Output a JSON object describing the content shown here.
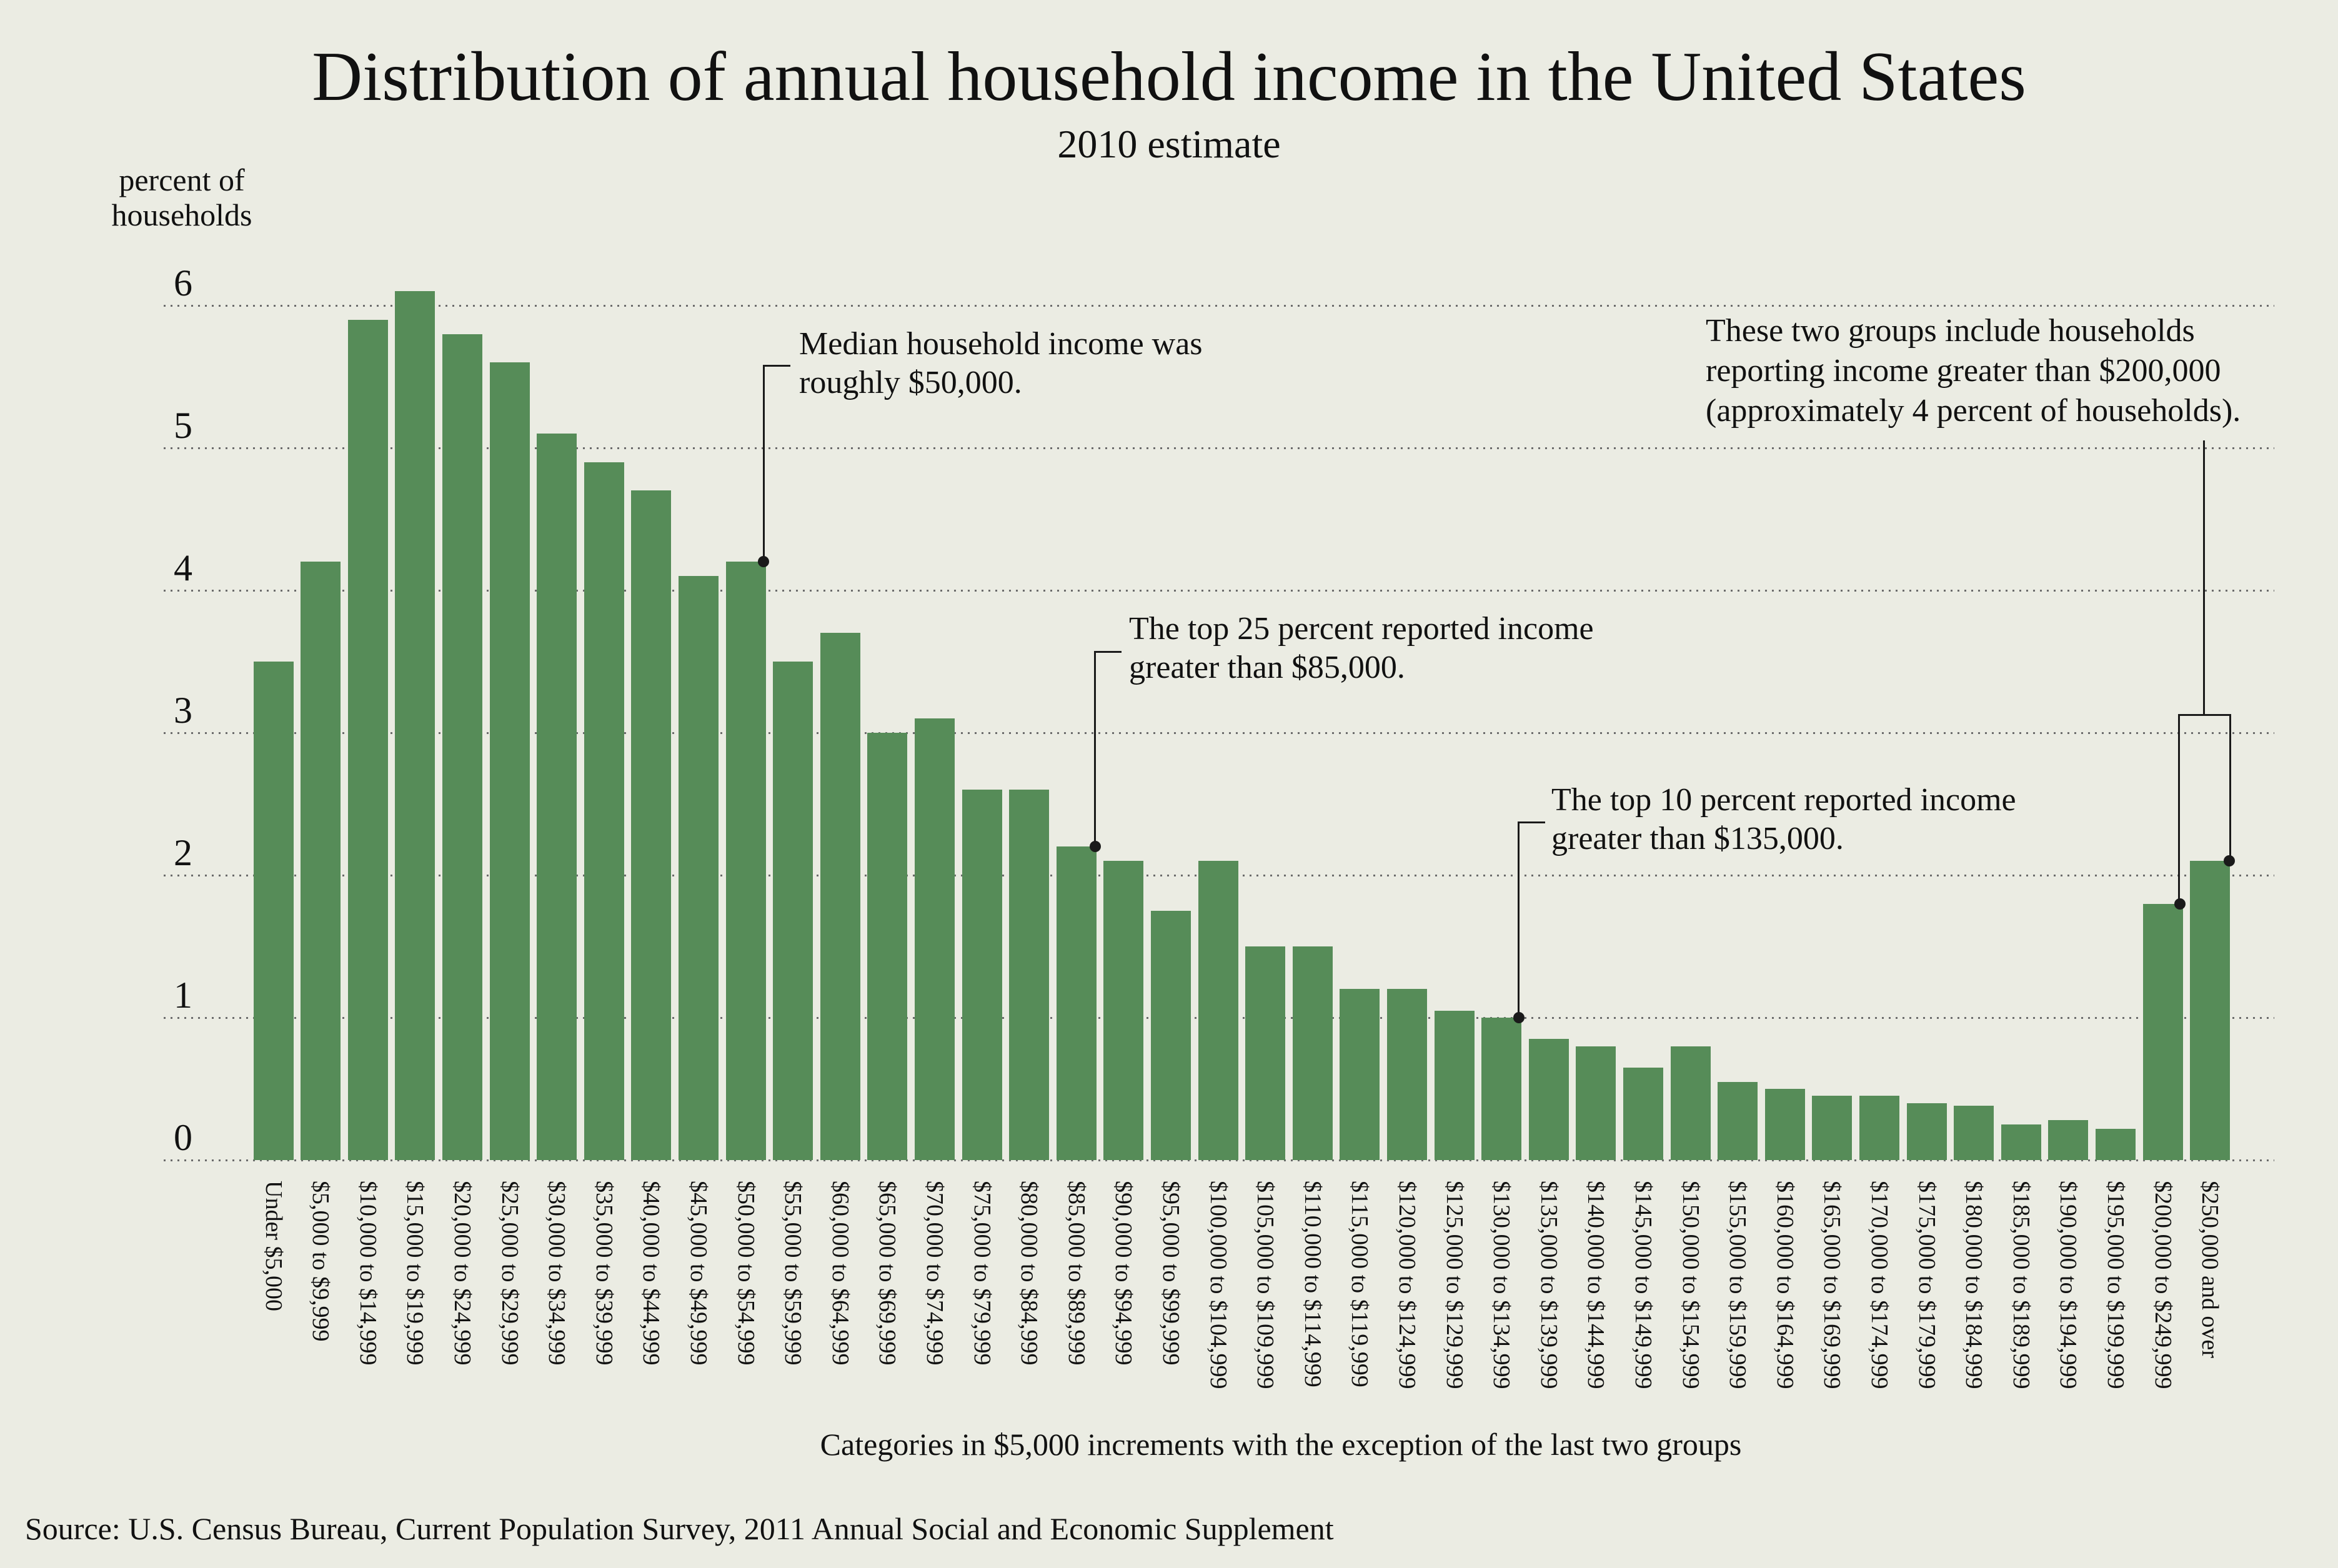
{
  "page": {
    "title": "Distribution of annual household income in the United States",
    "subtitle": "2010 estimate",
    "y_axis_title_line1": "percent of",
    "y_axis_title_line2": "households",
    "caption": "Categories in $5,000 increments with the exception of the last two groups",
    "source": "Source: U.S. Census Bureau, Current Population Survey, 2011 Annual Social and Economic Supplement"
  },
  "annotations": {
    "median": {
      "line1": "Median household income was",
      "line2": "roughly $50,000."
    },
    "top25": {
      "line1": "The top 25 percent reported income",
      "line2": "greater than $85,000."
    },
    "top10": {
      "line1": "The top 10 percent reported income",
      "line2": "greater than $135,000."
    },
    "high_income_groups": {
      "line1": "These two groups include households",
      "line2": "reporting income greater than $200,000",
      "line3": "(approximately 4 percent of households)."
    }
  },
  "colors": {
    "background": "#ebece3",
    "bar": "#568c58",
    "text": "#111111",
    "grid": "#6b6b6b",
    "connector": "#1a1a1a"
  },
  "chart_data": {
    "type": "bar",
    "title": "Distribution of annual household income in the United States",
    "subtitle": "2010 estimate",
    "ylabel": "percent of households",
    "xlabel": "Categories in $5,000 increments with the exception of the last two groups",
    "ylim": [
      0,
      6
    ],
    "yticks": [
      0,
      1,
      2,
      3,
      4,
      5,
      6
    ],
    "grid": "horizontal dotted, drawn behind bars",
    "legend_position": "none",
    "categories": [
      "Under $5,000",
      "$5,000 to $9,999",
      "$10,000 to $14,999",
      "$15,000 to $19,999",
      "$20,000 to $24,999",
      "$25,000 to $29,999",
      "$30,000 to $34,999",
      "$35,000 to $39,999",
      "$40,000 to $44,999",
      "$45,000 to $49,999",
      "$50,000 to $54,999",
      "$55,000 to $59,999",
      "$60,000 to $64,999",
      "$65,000 to $69,999",
      "$70,000 to $74,999",
      "$75,000 to $79,999",
      "$80,000 to $84,999",
      "$85,000 to $89,999",
      "$90,000 to $94,999",
      "$95,000 to $99,999",
      "$100,000 to $104,999",
      "$105,000 to $109,999",
      "$110,000 to $114,999",
      "$115,000 to $119,999",
      "$120,000 to $124,999",
      "$125,000 to $129,999",
      "$130,000 to $134,999",
      "$135,000 to $139,999",
      "$140,000 to $144,999",
      "$145,000 to $149,999",
      "$150,000 to $154,999",
      "$155,000 to $159,999",
      "$160,000 to $164,999",
      "$165,000 to $169,999",
      "$170,000 to $174,999",
      "$175,000 to $179,999",
      "$180,000 to $184,999",
      "$185,000 to $189,999",
      "$190,000 to $194,999",
      "$195,000 to $199,999",
      "$200,000 to $249,999",
      "$250,000 and over"
    ],
    "values": [
      3.5,
      4.2,
      5.9,
      6.1,
      5.8,
      5.6,
      5.1,
      4.9,
      4.7,
      4.1,
      4.2,
      3.5,
      3.7,
      3.0,
      3.1,
      2.6,
      2.6,
      2.2,
      2.1,
      1.75,
      2.1,
      1.5,
      1.5,
      1.2,
      1.2,
      1.05,
      1.0,
      0.85,
      0.8,
      0.65,
      0.8,
      0.55,
      0.5,
      0.45,
      0.45,
      0.4,
      0.38,
      0.25,
      0.28,
      0.22,
      1.8,
      2.1
    ]
  }
}
